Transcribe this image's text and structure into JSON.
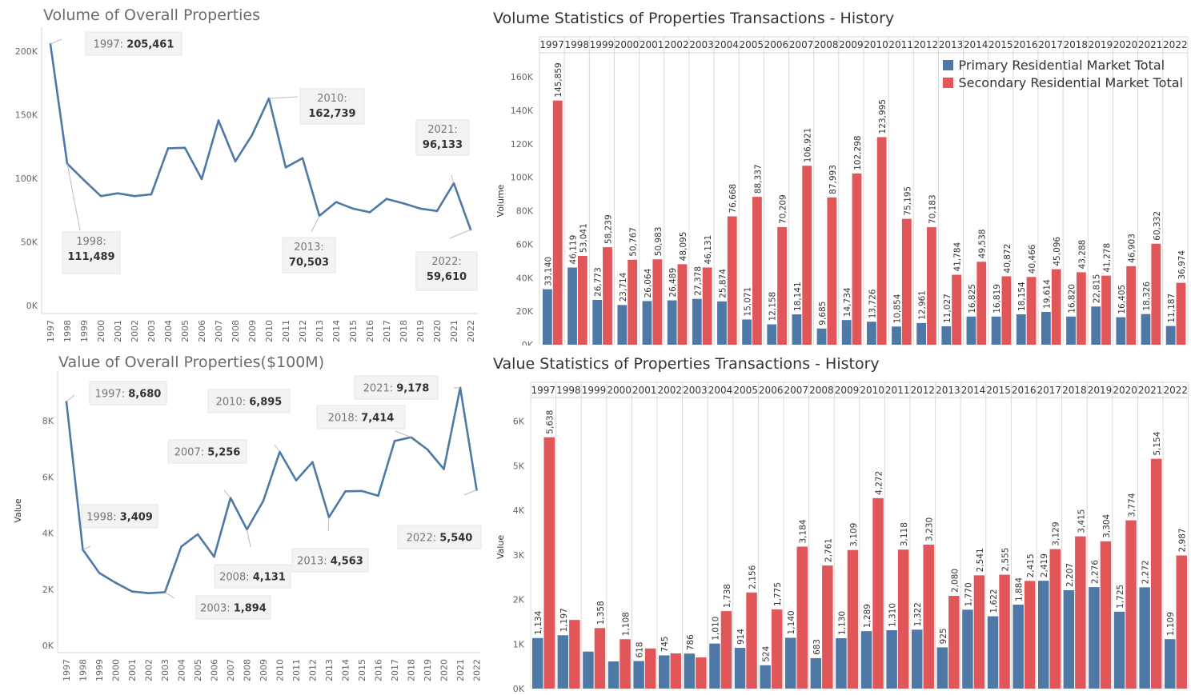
{
  "panels": {
    "vol_line_title": "Volume of Overall Properties",
    "vol_bar_title": "Volume Statistics of Properties Transactions - History",
    "val_line_title": "Value of Overall Properties($100M)",
    "val_bar_title": "Value Statistics of Properties Transactions - History"
  },
  "legend": {
    "primary": "Primary Residential Market Total",
    "secondary": "Secondary Residential Market Total"
  },
  "colors": {
    "primary": "#4e79a7",
    "secondary": "#e15759",
    "line": "#4e79a7"
  },
  "chart_data": [
    {
      "type": "line",
      "title": "Volume of Overall Properties",
      "xlabel": "",
      "ylabel": "",
      "x": [
        "1997",
        "1998",
        "1999",
        "2000",
        "2001",
        "2002",
        "2003",
        "2004",
        "2005",
        "2006",
        "2007",
        "2008",
        "2009",
        "2010",
        "2011",
        "2012",
        "2013",
        "2014",
        "2015",
        "2016",
        "2017",
        "2018",
        "2019",
        "2020",
        "2021",
        "2022"
      ],
      "values": [
        205461,
        111489,
        98500,
        86000,
        88200,
        86000,
        87400,
        123600,
        124000,
        99400,
        145500,
        113300,
        134100,
        162739,
        108600,
        115800,
        70503,
        81300,
        76200,
        73300,
        83800,
        80300,
        76200,
        74300,
        96133,
        59610
      ],
      "yticks": [
        "200K",
        "150K",
        "100K",
        "50K",
        "0K"
      ],
      "ylim": [
        0,
        215000
      ],
      "annotations": [
        {
          "year": "1997",
          "label": "1997:",
          "value": "205,461"
        },
        {
          "year": "1998",
          "label": "1998:",
          "value": "111,489"
        },
        {
          "year": "2010",
          "label": "2010:",
          "value": "162,739"
        },
        {
          "year": "2013",
          "label": "2013:",
          "value": "70,503"
        },
        {
          "year": "2021",
          "label": "2021:",
          "value": "96,133"
        },
        {
          "year": "2022",
          "label": "2022:",
          "value": "59,610"
        }
      ]
    },
    {
      "type": "bar",
      "title": "Volume Statistics of Properties Transactions - History",
      "xlabel": "",
      "ylabel": "Volume",
      "categories": [
        "1997",
        "1998",
        "1999",
        "2000",
        "2001",
        "2002",
        "2003",
        "2004",
        "2005",
        "2006",
        "2007",
        "2008",
        "2009",
        "2010",
        "2011",
        "2012",
        "2013",
        "2014",
        "2015",
        "2016",
        "2017",
        "2018",
        "2019",
        "2020",
        "2021",
        "2022"
      ],
      "series": [
        {
          "name": "Primary Residential Market Total",
          "values": [
            33140,
            46119,
            26773,
            23714,
            26064,
            26489,
            27378,
            25874,
            15071,
            12158,
            18141,
            9685,
            14734,
            13726,
            10854,
            12961,
            11027,
            16825,
            16819,
            18154,
            19614,
            16820,
            22815,
            16405,
            18326,
            11187
          ],
          "labels": [
            "33,140",
            "46,119",
            "26,773",
            "23,714",
            "26,064",
            "26,489",
            "27,378",
            "25,874",
            "15,071",
            "12,158",
            "18,141",
            "9,685",
            "14,734",
            "13,726",
            "10,854",
            "12,961",
            "11,027",
            "16,825",
            "16,819",
            "18,154",
            "19,614",
            "16,820",
            "22,815",
            "16,405",
            "18,326",
            "11,187"
          ]
        },
        {
          "name": "Secondary Residential Market Total",
          "values": [
            145859,
            53041,
            58239,
            50767,
            50983,
            48095,
            46131,
            76668,
            88337,
            70209,
            106921,
            87993,
            102298,
            123995,
            75195,
            70183,
            41784,
            49538,
            40872,
            40466,
            45096,
            43288,
            41278,
            46903,
            60332,
            36974
          ],
          "labels": [
            "145,859",
            "53,041",
            "58,239",
            "50,767",
            "50,983",
            "48,095",
            "46,131",
            "76,668",
            "88,337",
            "70,209",
            "106,921",
            "87,993",
            "102,298",
            "123,995",
            "75,195",
            "70,183",
            "41,784",
            "49,538",
            "40,872",
            "40,466",
            "45,096",
            "43,288",
            "41,278",
            "46,903",
            "60,332",
            "36,974"
          ]
        }
      ],
      "yticks": [
        "160K",
        "140K",
        "120K",
        "100K",
        "80K",
        "60K",
        "40K",
        "20K",
        "0K"
      ],
      "ylim": [
        0,
        172000
      ],
      "legend": "top-right"
    },
    {
      "type": "line",
      "title": "Value of Overall Properties($100M)",
      "xlabel": "",
      "ylabel": "Value",
      "x": [
        "1997",
        "1998",
        "1999",
        "2000",
        "2001",
        "2002",
        "2003",
        "2004",
        "2005",
        "2006",
        "2007",
        "2008",
        "2009",
        "2010",
        "2011",
        "2012",
        "2013",
        "2014",
        "2015",
        "2016",
        "2017",
        "2018",
        "2019",
        "2020",
        "2021",
        "2022"
      ],
      "values": [
        8680,
        3409,
        2580,
        2230,
        1920,
        1860,
        1894,
        3520,
        3960,
        3160,
        5256,
        4131,
        5150,
        6895,
        5880,
        6530,
        4563,
        5490,
        5500,
        5330,
        7280,
        7414,
        6980,
        6280,
        9178,
        5540
      ],
      "yticks": [
        "8K",
        "6K",
        "4K",
        "2K",
        "0K"
      ],
      "ylim": [
        0,
        9600
      ],
      "annotations": [
        {
          "year": "1997",
          "label": "1997:",
          "value": "8,680"
        },
        {
          "year": "1998",
          "label": "1998:",
          "value": "3,409"
        },
        {
          "year": "2003",
          "label": "2003:",
          "value": "1,894"
        },
        {
          "year": "2007",
          "label": "2007:",
          "value": "5,256"
        },
        {
          "year": "2008",
          "label": "2008:",
          "value": "4,131"
        },
        {
          "year": "2010",
          "label": "2010:",
          "value": "6,895"
        },
        {
          "year": "2013",
          "label": "2013:",
          "value": "4,563"
        },
        {
          "year": "2018",
          "label": "2018:",
          "value": "7,414"
        },
        {
          "year": "2021",
          "label": "2021:",
          "value": "9,178"
        },
        {
          "year": "2022",
          "label": "2022:",
          "value": "5,540"
        }
      ]
    },
    {
      "type": "bar",
      "title": "Value Statistics of Properties Transactions - History",
      "xlabel": "",
      "ylabel": "Value",
      "categories": [
        "1997",
        "1998",
        "1999",
        "2000",
        "2001",
        "2002",
        "2003",
        "2004",
        "2005",
        "2006",
        "2007",
        "2008",
        "2009",
        "2010",
        "2011",
        "2012",
        "2013",
        "2014",
        "2015",
        "2016",
        "2017",
        "2018",
        "2019",
        "2020",
        "2021",
        "2022"
      ],
      "series": [
        {
          "name": "Primary Residential Market Total",
          "values": [
            1134,
            1197,
            830,
            610,
            618,
            745,
            786,
            1010,
            914,
            524,
            1140,
            683,
            1130,
            1289,
            1310,
            1322,
            925,
            1770,
            1622,
            1884,
            2419,
            2207,
            2276,
            1725,
            2272,
            1109
          ],
          "labels": [
            "1,134",
            "1,197",
            "",
            "",
            "618",
            "745",
            "786",
            "1,010",
            "914",
            "524",
            "1,140",
            "683",
            "1,130",
            "1,289",
            "1,310",
            "1,322",
            "925",
            "1,770",
            "1,622",
            "1,884",
            "2,419",
            "2,207",
            "2,276",
            "1,725",
            "2,272",
            "1,109"
          ]
        },
        {
          "name": "Secondary Residential Market Total",
          "values": [
            5638,
            1540,
            1358,
            1108,
            900,
            790,
            700,
            1738,
            2156,
            1775,
            3184,
            2761,
            3109,
            4272,
            3118,
            3230,
            2080,
            2541,
            2555,
            2415,
            3129,
            3415,
            3304,
            3774,
            5154,
            2987
          ],
          "labels": [
            "5,638",
            "",
            "1,358",
            "1,108",
            "",
            "",
            "",
            "1,738",
            "2,156",
            "1,775",
            "3,184",
            "2,761",
            "3,109",
            "4,272",
            "3,118",
            "3,230",
            "2,080",
            "2,541",
            "2,555",
            "2,415",
            "3,129",
            "3,415",
            "3,304",
            "3,774",
            "5,154",
            "2,987"
          ]
        }
      ],
      "yticks": [
        "6K",
        "5K",
        "4K",
        "3K",
        "2K",
        "1K",
        "0K"
      ],
      "ylim": [
        0,
        6350
      ],
      "legend": "none"
    }
  ]
}
